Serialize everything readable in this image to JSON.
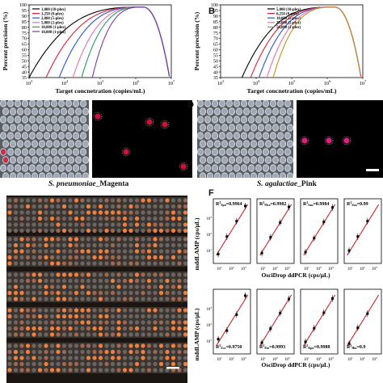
{
  "panels": {
    "A": {
      "label": "A"
    },
    "B": {
      "label": "B"
    },
    "D": {
      "label": "D"
    },
    "F": {
      "label": "F"
    }
  },
  "chart_data": [
    {
      "type": "line",
      "panel": "A",
      "ylabel": "Percent precision (%)",
      "xlabel": "Target concnetration (copies/mL)",
      "x_scale": "log",
      "xlim": [
        1000,
        10000000
      ],
      "ylim": [
        35,
        100
      ],
      "yticks": [
        35,
        40,
        45,
        50,
        55,
        60,
        65,
        70,
        75,
        80,
        85,
        90,
        95,
        100
      ],
      "xticks": [
        "10^3",
        "10^4",
        "10^5",
        "10^6",
        "10^7"
      ],
      "legend_position": "top-left",
      "series": [
        {
          "name": "1,000 (10-plex)",
          "color": "#000000",
          "rise_start": 1000
        },
        {
          "name": "1,250 (8-plex)",
          "color": "#e0203a",
          "rise_start": 3000
        },
        {
          "name": "2,000 (5-plex)",
          "color": "#2a55d0",
          "rise_start": 7000
        },
        {
          "name": "5,000 (2-plex)",
          "color": "#e870a8",
          "rise_start": 17000
        },
        {
          "name": "10,000 (1-plex)",
          "color": "#2e9a62",
          "rise_start": 30000
        },
        {
          "name": "10,000 (1-plex)",
          "color": "#7a3aa8",
          "rise_start": 60000
        }
      ]
    },
    {
      "type": "line",
      "panel": "B",
      "ylabel": "Percent precision (%)",
      "xlabel": "Target concnetration (copies/mL)",
      "x_scale": "log",
      "xlim": [
        1000,
        10000000
      ],
      "ylim": [
        35,
        100
      ],
      "yticks": [
        35,
        40,
        45,
        50,
        55,
        60,
        65,
        70,
        75,
        80,
        85,
        90,
        95,
        100
      ],
      "xticks": [
        "10^3",
        "10^4",
        "10^5",
        "10^6",
        "10^7"
      ],
      "legend_position": "top-center",
      "series": [
        {
          "name": "5,000 (10-plex)",
          "color": "#000000",
          "rise_start": 4000
        },
        {
          "name": "6,250 (8-plex)",
          "color": "#e0203a",
          "rise_start": 7000
        },
        {
          "name": "10,000 (5-plex)",
          "color": "#2a55d0",
          "rise_start": 12000
        },
        {
          "name": "25,000 (2-plex)",
          "color": "#e870a8",
          "rise_start": 20000
        },
        {
          "name": "50,000 (1-plex)",
          "color": "#c09020",
          "rise_start": 30000
        }
      ]
    },
    {
      "type": "scatter",
      "panel": "F",
      "xlabel": "OsciDrop ddPCR (cps/μL)",
      "ylabel": "mddLAMP (cps/μL)",
      "x_scale": "log",
      "y_scale": "log",
      "subplots": [
        {
          "r2": "0.9964",
          "sub": "Spn",
          "points": [
            [
              10,
              8
            ],
            [
              50,
              60
            ],
            [
              300,
              350
            ],
            [
              1500,
              2000
            ]
          ]
        },
        {
          "r2": "0.9982",
          "sub": "Mca",
          "points": [
            [
              10,
              9
            ],
            [
              50,
              55
            ],
            [
              300,
              300
            ],
            [
              1500,
              1800
            ]
          ]
        },
        {
          "r2": "0.9984",
          "sub": "Sau",
          "points": [
            [
              10,
              10
            ],
            [
              50,
              50
            ],
            [
              300,
              320
            ],
            [
              1500,
              1700
            ]
          ]
        },
        {
          "r2": "0.99",
          "sub": "Suu",
          "points": [
            [
              10,
              12
            ],
            [
              50,
              60
            ],
            [
              300,
              350
            ]
          ]
        },
        {
          "r2": "0.9750",
          "sub": "Eco",
          "points": [
            [
              10,
              15
            ],
            [
              50,
              40
            ],
            [
              300,
              250
            ],
            [
              1500,
              2200
            ]
          ]
        },
        {
          "r2": "0.9993",
          "sub": "Pae",
          "points": [
            [
              10,
              10
            ],
            [
              50,
              50
            ],
            [
              300,
              300
            ],
            [
              1500,
              1500
            ]
          ]
        },
        {
          "r2": "0.9988",
          "sub": "Kpn",
          "points": [
            [
              10,
              11
            ],
            [
              50,
              52
            ],
            [
              300,
              310
            ],
            [
              1500,
              1600
            ]
          ]
        },
        {
          "r2": "0.9",
          "sub": "Hin",
          "points": [
            [
              10,
              9
            ],
            [
              50,
              55
            ],
            [
              300,
              280
            ]
          ]
        }
      ]
    }
  ],
  "captions": {
    "c_left": "S. pneumoniae",
    "c_left_suffix": "_Magenta",
    "d_right": "S. agalactiae",
    "d_right_suffix": "_Pink"
  },
  "colors": {
    "magenta": "#d0103a",
    "pink": "#e0207a",
    "fit_line": "#d01010"
  }
}
